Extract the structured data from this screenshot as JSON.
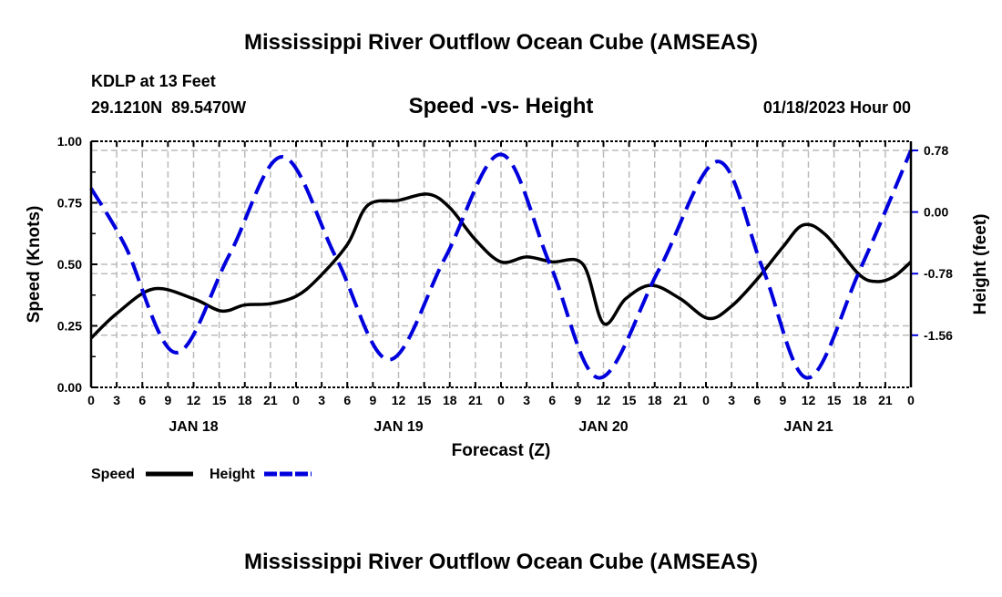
{
  "chart_data": {
    "type": "line",
    "title": "Mississippi River Outflow Ocean Cube (AMSEAS)",
    "footer_title": "Mississippi River Outflow Ocean Cube (AMSEAS)",
    "station": "KDLP at 13 Feet",
    "location": "29.1210N  89.5470W",
    "subtitle": "Speed -vs- Height",
    "date": "01/18/2023 Hour 00",
    "xlabel": "Forecast (Z)",
    "ylabel": "Speed (Knots)",
    "y2label": "Height (feet)",
    "xlim": [
      0,
      96
    ],
    "ylim": [
      0,
      1
    ],
    "y2lim": [
      -2.22,
      0.896
    ],
    "x_tick_labels": [
      "0",
      "3",
      "6",
      "9",
      "12",
      "15",
      "18",
      "21",
      "0",
      "3",
      "6",
      "9",
      "12",
      "15",
      "18",
      "21",
      "0",
      "3",
      "6",
      "9",
      "12",
      "15",
      "18",
      "21",
      "0",
      "3",
      "6",
      "9",
      "12",
      "15",
      "18",
      "21",
      "0"
    ],
    "day_labels": [
      {
        "hour": 12,
        "label": "JAN 18"
      },
      {
        "hour": 36,
        "label": "JAN 19"
      },
      {
        "hour": 60,
        "label": "JAN 20"
      },
      {
        "hour": 84,
        "label": "JAN 21"
      }
    ],
    "y_ticks": [
      {
        "value": 0,
        "label": "0.00"
      },
      {
        "value": 0.25,
        "label": "0.25"
      },
      {
        "value": 0.5,
        "label": "0.50"
      },
      {
        "value": 0.75,
        "label": "0.75"
      },
      {
        "value": 1,
        "label": "1.00"
      }
    ],
    "y2_ticks": [
      {
        "value": 0.78,
        "label": "0.78"
      },
      {
        "value": 0,
        "label": "0.00"
      },
      {
        "value": -0.78,
        "label": "-0.78"
      },
      {
        "value": -1.56,
        "label": "-1.56"
      }
    ],
    "grid": true,
    "legend_position": "bottom-left",
    "series": [
      {
        "name": "Speed",
        "axis": "left",
        "color": "#000000",
        "style": "solid",
        "points": [
          [
            0,
            0.2
          ],
          [
            3,
            0.3
          ],
          [
            7.3,
            0.4
          ],
          [
            12,
            0.36
          ],
          [
            15.3,
            0.31
          ],
          [
            18,
            0.335
          ],
          [
            21,
            0.34
          ],
          [
            24,
            0.37
          ],
          [
            26.5,
            0.44
          ],
          [
            30,
            0.58
          ],
          [
            32.4,
            0.74
          ],
          [
            36,
            0.76
          ],
          [
            39.5,
            0.785
          ],
          [
            42,
            0.73
          ],
          [
            45,
            0.6
          ],
          [
            48,
            0.51
          ],
          [
            51,
            0.53
          ],
          [
            54,
            0.51
          ],
          [
            57.6,
            0.5
          ],
          [
            60,
            0.26
          ],
          [
            62.6,
            0.36
          ],
          [
            65.6,
            0.415
          ],
          [
            69,
            0.36
          ],
          [
            72.3,
            0.28
          ],
          [
            75,
            0.33
          ],
          [
            78,
            0.44
          ],
          [
            81,
            0.57
          ],
          [
            83.4,
            0.66
          ],
          [
            86,
            0.62
          ],
          [
            89.9,
            0.46
          ],
          [
            92,
            0.43
          ],
          [
            94,
            0.45
          ],
          [
            96,
            0.51
          ]
        ]
      },
      {
        "name": "Height",
        "axis": "right",
        "color": "#0000dd",
        "style": "dashed",
        "points": [
          [
            0,
            0.3
          ],
          [
            4,
            -0.43
          ],
          [
            9.9,
            -1.78
          ],
          [
            16.2,
            -0.54
          ],
          [
            22.4,
            0.7
          ],
          [
            28.7,
            -0.58
          ],
          [
            34.9,
            -1.87
          ],
          [
            41.5,
            -0.57
          ],
          [
            48,
            0.73
          ],
          [
            53.8,
            -0.68
          ],
          [
            59.5,
            -2.1
          ],
          [
            66.5,
            -0.73
          ],
          [
            73.4,
            0.64
          ],
          [
            78.7,
            -0.73
          ],
          [
            83.9,
            -2.1
          ],
          [
            90,
            -0.74
          ],
          [
            96,
            0.78
          ]
        ]
      }
    ]
  }
}
